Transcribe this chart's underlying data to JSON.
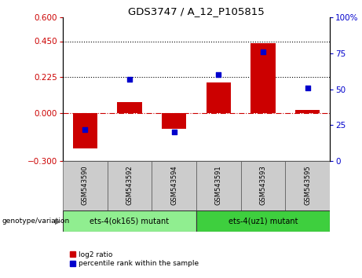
{
  "title": "GDS3747 / A_12_P105815",
  "samples": [
    "GSM543590",
    "GSM543592",
    "GSM543594",
    "GSM543591",
    "GSM543593",
    "GSM543595"
  ],
  "log2_ratio": [
    -0.22,
    0.07,
    -0.1,
    0.19,
    0.44,
    0.02
  ],
  "percentile_rank": [
    22,
    57,
    20,
    60,
    76,
    51
  ],
  "ylim_left": [
    -0.3,
    0.6
  ],
  "ylim_right": [
    0,
    100
  ],
  "yticks_left": [
    -0.3,
    0,
    0.225,
    0.45,
    0.6
  ],
  "yticks_right": [
    0,
    25,
    50,
    75,
    100
  ],
  "hlines": [
    0.225,
    0.45
  ],
  "bar_color": "#cc0000",
  "dot_color": "#0000cc",
  "zero_line_color": "#cc0000",
  "hline_color": "black",
  "group1_label": "ets-4(ok165) mutant",
  "group2_label": "ets-4(uz1) mutant",
  "group1_color": "#90ee90",
  "group2_color": "#3ecf3e",
  "group1_samples": [
    0,
    1,
    2
  ],
  "group2_samples": [
    3,
    4,
    5
  ],
  "genotype_label": "genotype/variation",
  "legend_log2": "log2 ratio",
  "legend_pct": "percentile rank within the sample",
  "bar_width": 0.55,
  "dot_size": 25,
  "sample_box_color": "#cccccc",
  "pct_to_log2_scale": 0.009
}
